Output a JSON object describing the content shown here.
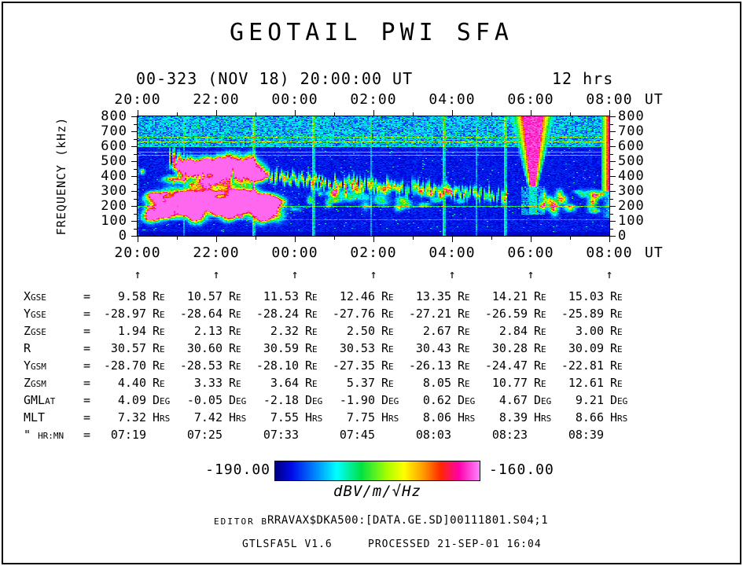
{
  "header": {
    "title": "GEOTAIL PWI SFA",
    "date_label": "00-323 (NOV 18) 20:00:00 UT",
    "duration_label": "12 hrs"
  },
  "axes": {
    "time_ticks": [
      "20:00",
      "22:00",
      "00:00",
      "02:00",
      "04:00",
      "06:00",
      "08:00"
    ],
    "time_unit": "UT",
    "freq_ticks": [
      "800",
      "700",
      "600",
      "500",
      "400",
      "300",
      "200",
      "100",
      "0"
    ],
    "freq_label": "FREQUENCY (kHz)"
  },
  "ephemeris": {
    "rows": [
      {
        "label_main": "X",
        "label_sub": "GSE",
        "eq": "=",
        "unit": "Re",
        "values": [
          "9.58",
          "10.57",
          "11.53",
          "12.46",
          "13.35",
          "14.21",
          "15.03"
        ]
      },
      {
        "label_main": "Y",
        "label_sub": "GSE",
        "eq": "=",
        "unit": "Re",
        "values": [
          "-28.97",
          "-28.64",
          "-28.24",
          "-27.76",
          "-27.21",
          "-26.59",
          "-25.89"
        ]
      },
      {
        "label_main": "Z",
        "label_sub": "GSE",
        "eq": "=",
        "unit": "Re",
        "values": [
          "1.94",
          "2.13",
          "2.32",
          "2.50",
          "2.67",
          "2.84",
          "3.00"
        ]
      },
      {
        "label_main": "R",
        "label_sub": "",
        "eq": "=",
        "unit": "Re",
        "values": [
          "30.57",
          "30.60",
          "30.59",
          "30.53",
          "30.43",
          "30.28",
          "30.09"
        ]
      },
      {
        "label_main": "Y",
        "label_sub": "GSM",
        "eq": "=",
        "unit": "Re",
        "values": [
          "-28.70",
          "-28.53",
          "-28.10",
          "-27.35",
          "-26.13",
          "-24.47",
          "-22.81"
        ]
      },
      {
        "label_main": "Z",
        "label_sub": "GSM",
        "eq": "=",
        "unit": "Re",
        "values": [
          "4.40",
          "3.33",
          "3.64",
          "5.37",
          "8.05",
          "10.77",
          "12.61"
        ]
      },
      {
        "label_main": "GML",
        "label_sub": "AT",
        "eq": "=",
        "unit": "Deg",
        "values": [
          "4.09",
          "-0.05",
          "-2.18",
          "-1.90",
          "0.62",
          "4.67",
          "9.21"
        ]
      },
      {
        "label_main": "MLT",
        "label_sub": "",
        "eq": "=",
        "unit": "Hrs",
        "values": [
          "7.32",
          "7.42",
          "7.55",
          "7.75",
          "8.06",
          "8.39",
          "8.66"
        ]
      },
      {
        "label_main": "\" ",
        "label_sub": "HR:MN",
        "eq": "=",
        "unit": "",
        "values": [
          "07:19",
          "07:25",
          "07:33",
          "07:45",
          "08:03",
          "08:23",
          "08:39"
        ]
      }
    ]
  },
  "colorbar": {
    "min_label": "-190.00",
    "max_label": "-160.00",
    "unit_label": "dBV/m/√Hz"
  },
  "footer": {
    "editor": "EDITOR B",
    "file": "RRAVAX$DKA500:[DATA.GE.SD]00111801.S04;1",
    "program": "GTLSFA5L V1.6",
    "processed": "PROCESSED 21-SEP-01  16:04"
  },
  "chart_data": {
    "type": "heatmap",
    "title": "GEOTAIL PWI SFA",
    "subtitle": "00-323 (NOV 18) 20:00:00 UT, 12 hrs",
    "xlabel": "UT",
    "ylabel": "FREQUENCY (kHz)",
    "x_ticks": [
      "20:00",
      "22:00",
      "00:00",
      "02:00",
      "04:00",
      "06:00",
      "08:00"
    ],
    "x_range_hours": [
      0,
      12
    ],
    "y_ticks_khz": [
      0,
      100,
      200,
      300,
      400,
      500,
      600,
      700,
      800
    ],
    "y_range_khz": [
      0,
      800
    ],
    "colorbar": {
      "min_db": -190.0,
      "max_db": -160.0,
      "units": "dBV/m/√Hz"
    },
    "features": {
      "background": "deep blue noise floor near -190 dB",
      "speckle_band_khz": [
        600,
        800
      ],
      "interference_lines": [
        [
          665,
          0.22
        ],
        [
          630,
          0.26
        ],
        [
          600,
          0.22
        ],
        [
          565,
          0.2
        ],
        [
          540,
          0.16
        ],
        [
          110,
          0.1
        ]
      ],
      "strong_line": [
        200,
        0.3
      ],
      "drifting_band": [
        [
          0.8,
          500
        ],
        [
          1.5,
          460
        ],
        [
          2.5,
          425
        ],
        [
          3.5,
          395
        ],
        [
          4.5,
          365
        ],
        [
          5.5,
          345
        ],
        [
          6.5,
          325
        ],
        [
          7.5,
          305
        ],
        [
          8.5,
          285
        ],
        [
          9.4,
          265
        ]
      ],
      "low_freq_patch_region": {
        "t_range_hr": [
          0.3,
          3.6
        ],
        "f_range_khz": [
          120,
          290
        ]
      },
      "vertical_streaks": [
        {
          "t_hr": 1.15,
          "strong": false
        },
        {
          "t_hr": 2.9,
          "strong": true
        },
        {
          "t_hr": 4.45,
          "strong": true
        },
        {
          "t_hr": 5.9,
          "strong": false
        },
        {
          "t_hr": 7.75,
          "strong": true
        },
        {
          "t_hr": 8.6,
          "strong": false
        },
        {
          "t_hr": 9.3,
          "strong": true
        }
      ],
      "burst": {
        "t_hr": 10.05,
        "f_range_khz": [
          330,
          800
        ]
      },
      "right_edge_strip": {
        "t_range_hr": [
          11.8,
          12.0
        ],
        "f_range_khz": [
          300,
          800
        ]
      }
    }
  }
}
